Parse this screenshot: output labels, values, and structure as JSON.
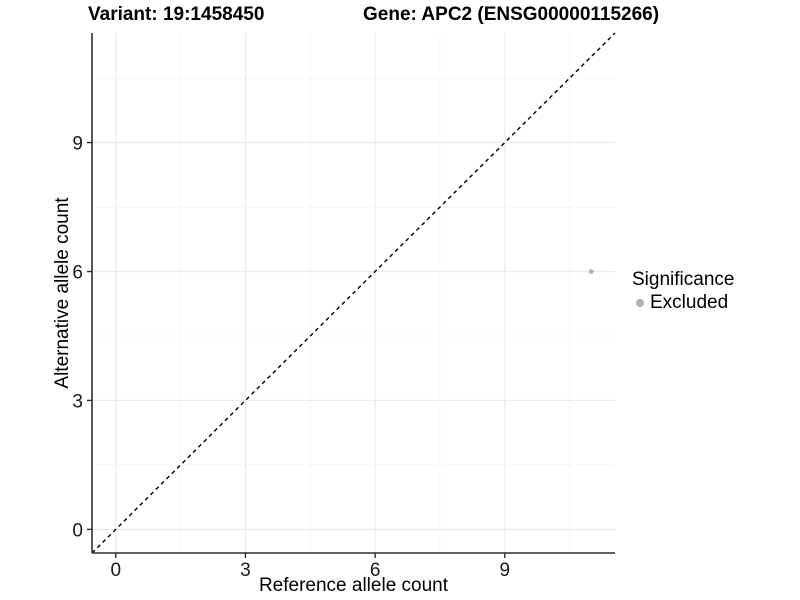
{
  "chart_data": {
    "type": "scatter",
    "title_left": "Variant: 19:1458450",
    "title_right": "Gene: APC2 (ENSG00000115266)",
    "xlabel": "Reference allele count",
    "ylabel": "Alternative allele count",
    "xlim": [
      -0.55,
      11.55
    ],
    "ylim": [
      -0.55,
      11.55
    ],
    "x_ticks": [
      0,
      3,
      6,
      9
    ],
    "y_ticks": [
      0,
      3,
      6,
      9
    ],
    "x_minor_ticks": [
      1.5,
      4.5,
      7.5,
      10.5
    ],
    "y_minor_ticks": [
      1.5,
      4.5,
      7.5,
      10.5
    ],
    "grid": true,
    "series": [
      {
        "name": "Excluded",
        "color": "#b4b4b4",
        "points": [
          {
            "x": 11,
            "y": 6
          }
        ]
      }
    ],
    "reference_line": {
      "slope": 1,
      "intercept": 0,
      "style": "dashed",
      "color": "#000000"
    },
    "legend": {
      "position": "right",
      "title": "Significance",
      "items": [
        {
          "label": "Excluded",
          "color": "#b0b0b0"
        }
      ]
    }
  },
  "colors": {
    "background": "#ffffff",
    "grid_major": "#ebebeb",
    "grid_minor": "#f6f6f6",
    "axis_line": "#2e2e2e",
    "tick_text": "#1a1a1a"
  }
}
